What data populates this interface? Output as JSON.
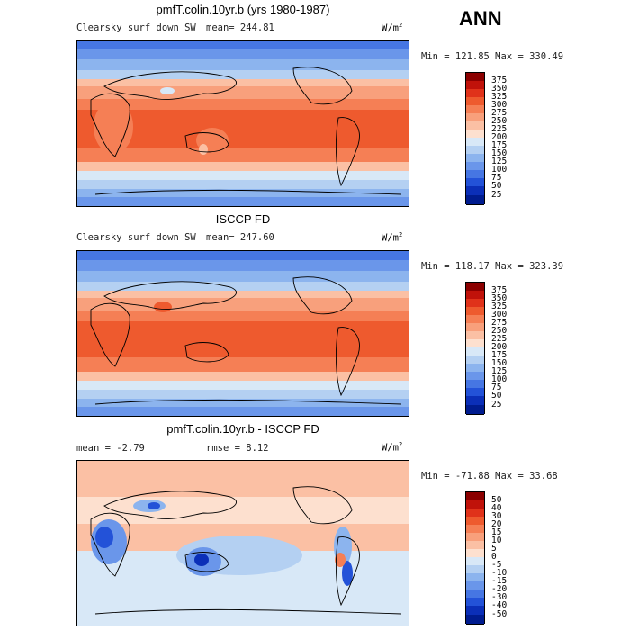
{
  "season": "ANN",
  "panels": [
    {
      "title": "pmfT.colin.10yr.b (yrs 1980-1987)",
      "left_text": "Clearsky surf down SW",
      "mean_text": "mean= 244.81",
      "units_base": "W/m",
      "units_exp": "2",
      "minmax_text": "Min = 121.85 Max = 330.49",
      "colorbar": {
        "labels": [
          "375",
          "350",
          "325",
          "300",
          "275",
          "250",
          "225",
          "200",
          "175",
          "150",
          "125",
          "100",
          "75",
          "50",
          "25"
        ],
        "colors": [
          "#8b0000",
          "#c0120a",
          "#e0321a",
          "#ee5a2e",
          "#f57f55",
          "#f8a07c",
          "#fbc0a4",
          "#fde0cf",
          "#d8e8f7",
          "#b4d0f2",
          "#8cb4ee",
          "#6a96ea",
          "#4676e3",
          "#2352d8",
          "#0b2fb8",
          "#001c8f"
        ]
      }
    },
    {
      "title": "ISCCP FD",
      "left_text": "Clearsky surf down SW",
      "mean_text": "mean= 247.60",
      "units_base": "W/m",
      "units_exp": "2",
      "minmax_text": "Min = 118.17 Max = 323.39",
      "colorbar": {
        "labels": [
          "375",
          "350",
          "325",
          "300",
          "275",
          "250",
          "225",
          "200",
          "175",
          "150",
          "125",
          "100",
          "75",
          "50",
          "25"
        ],
        "colors": [
          "#8b0000",
          "#c0120a",
          "#e0321a",
          "#ee5a2e",
          "#f57f55",
          "#f8a07c",
          "#fbc0a4",
          "#fde0cf",
          "#d8e8f7",
          "#b4d0f2",
          "#8cb4ee",
          "#6a96ea",
          "#4676e3",
          "#2352d8",
          "#0b2fb8",
          "#001c8f"
        ]
      }
    },
    {
      "title": "pmfT.colin.10yr.b - ISCCP FD",
      "mean_text": "mean =  -2.79",
      "rmse_text": "rmse =   8.12",
      "units_base": "W/m",
      "units_exp": "2",
      "minmax_text": "Min = -71.88 Max =  33.68",
      "colorbar": {
        "labels": [
          "50",
          "40",
          "30",
          "20",
          "15",
          "10",
          "5",
          "0",
          "-5",
          "-10",
          "-15",
          "-20",
          "-30",
          "-40",
          "-50"
        ],
        "colors": [
          "#8b0000",
          "#c0120a",
          "#e0321a",
          "#ee5a2e",
          "#f57f55",
          "#f8a07c",
          "#fbc0a4",
          "#fde0cf",
          "#d8e8f7",
          "#b4d0f2",
          "#8cb4ee",
          "#6a96ea",
          "#4676e3",
          "#2352d8",
          "#0b2fb8",
          "#001c8f"
        ]
      }
    }
  ]
}
